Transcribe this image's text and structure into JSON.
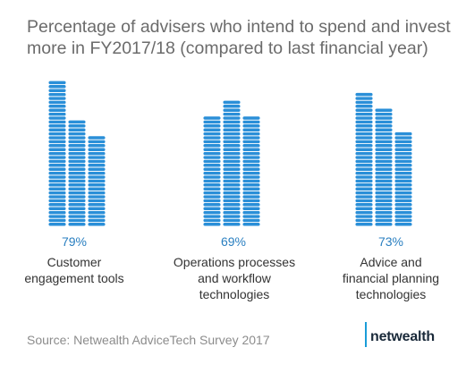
{
  "title_lines": [
    "Percentage of advisers who intend to spend and invest",
    "more in FY2017/18 (compared to last financial year)"
  ],
  "colors": {
    "coin_fill": "#2a8fd8",
    "coin_edge": "#ffffff",
    "value_text": "#2a7fc0",
    "title_text": "#6b6b6b"
  },
  "chart_data": {
    "type": "bar",
    "categories": [
      [
        "Customer",
        "engagement tools"
      ],
      [
        "Operations processes",
        "and workflow",
        "technologies"
      ],
      [
        "Advice and",
        "financial planning",
        "technologies"
      ]
    ],
    "values": [
      79,
      69,
      73
    ],
    "value_labels": [
      "79%",
      "69%",
      "73%"
    ],
    "unit": "%"
  },
  "source": "Source: Netwealth AdviceTech Survey 2017",
  "logo": {
    "text": "netwealth"
  }
}
